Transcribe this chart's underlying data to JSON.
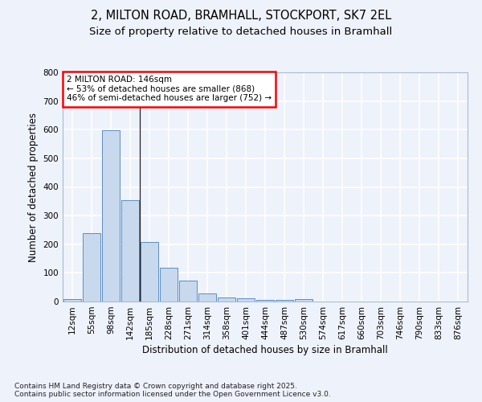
{
  "title_line1": "2, MILTON ROAD, BRAMHALL, STOCKPORT, SK7 2EL",
  "title_line2": "Size of property relative to detached houses in Bramhall",
  "xlabel": "Distribution of detached houses by size in Bramhall",
  "ylabel": "Number of detached properties",
  "categories": [
    "12sqm",
    "55sqm",
    "98sqm",
    "142sqm",
    "185sqm",
    "228sqm",
    "271sqm",
    "314sqm",
    "358sqm",
    "401sqm",
    "444sqm",
    "487sqm",
    "530sqm",
    "574sqm",
    "617sqm",
    "660sqm",
    "703sqm",
    "746sqm",
    "790sqm",
    "833sqm",
    "876sqm"
  ],
  "values": [
    8,
    240,
    597,
    355,
    207,
    118,
    72,
    28,
    15,
    10,
    7,
    5,
    9,
    0,
    0,
    0,
    0,
    0,
    0,
    0,
    0
  ],
  "bar_color": "#c8d9ee",
  "bar_edge_color": "#5b8dc8",
  "background_color": "#eef2fb",
  "grid_color": "#ffffff",
  "annotation_text": "2 MILTON ROAD: 146sqm\n← 53% of detached houses are smaller (868)\n46% of semi-detached houses are larger (752) →",
  "vline_bar_index": 3,
  "ylim": [
    0,
    800
  ],
  "yticks": [
    0,
    100,
    200,
    300,
    400,
    500,
    600,
    700,
    800
  ],
  "footer_text": "Contains HM Land Registry data © Crown copyright and database right 2025.\nContains public sector information licensed under the Open Government Licence v3.0.",
  "title_fontsize": 10.5,
  "subtitle_fontsize": 9.5,
  "axis_label_fontsize": 8.5,
  "tick_fontsize": 7.5,
  "annotation_fontsize": 7.5,
  "footer_fontsize": 6.5
}
